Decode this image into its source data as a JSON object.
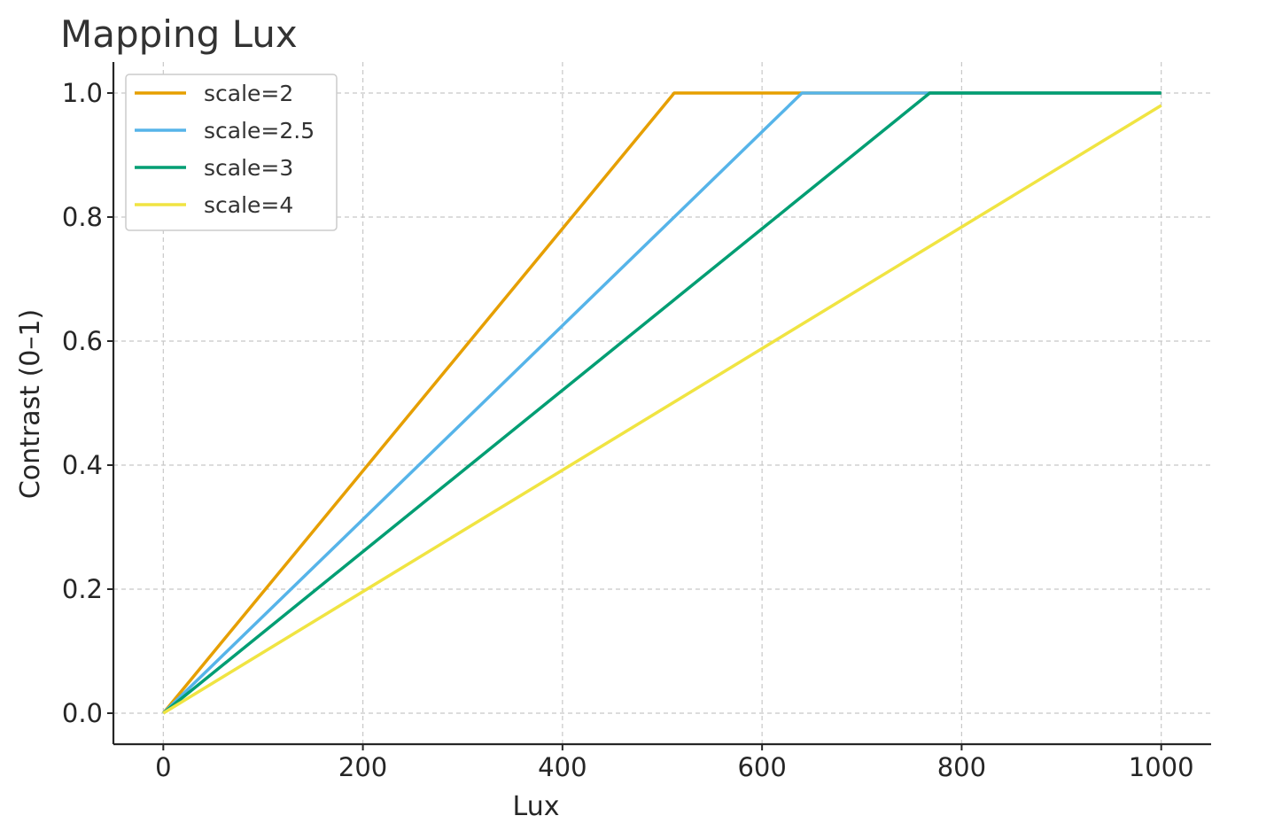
{
  "chart_data": {
    "type": "line",
    "title": "Mapping Lux",
    "xlabel": "Lux",
    "ylabel": "Contrast (0–1)",
    "xlim": [
      -50,
      1050
    ],
    "ylim": [
      -0.05,
      1.05
    ],
    "xticks": [
      0,
      200,
      400,
      600,
      800,
      1000
    ],
    "xtick_labels": [
      "0",
      "200",
      "400",
      "600",
      "800",
      "1000"
    ],
    "yticks": [
      0.0,
      0.2,
      0.4,
      0.6,
      0.8,
      1.0
    ],
    "ytick_labels": [
      "0.0",
      "0.2",
      "0.4",
      "0.6",
      "0.8",
      "1.0"
    ],
    "grid": true,
    "legend_position": "top-left",
    "series": [
      {
        "name": "scale=2",
        "color": "#E69F00",
        "x": [
          0,
          512,
          1000
        ],
        "y": [
          0.0,
          1.0,
          1.0
        ]
      },
      {
        "name": "scale=2.5",
        "color": "#56B4E9",
        "x": [
          0,
          640,
          1000
        ],
        "y": [
          0.0,
          1.0,
          1.0
        ]
      },
      {
        "name": "scale=3",
        "color": "#009E73",
        "x": [
          0,
          768,
          1000
        ],
        "y": [
          0.0,
          1.0,
          1.0
        ]
      },
      {
        "name": "scale=4",
        "color": "#F0E442",
        "x": [
          0,
          1000
        ],
        "y": [
          0.0,
          0.98
        ]
      }
    ]
  }
}
